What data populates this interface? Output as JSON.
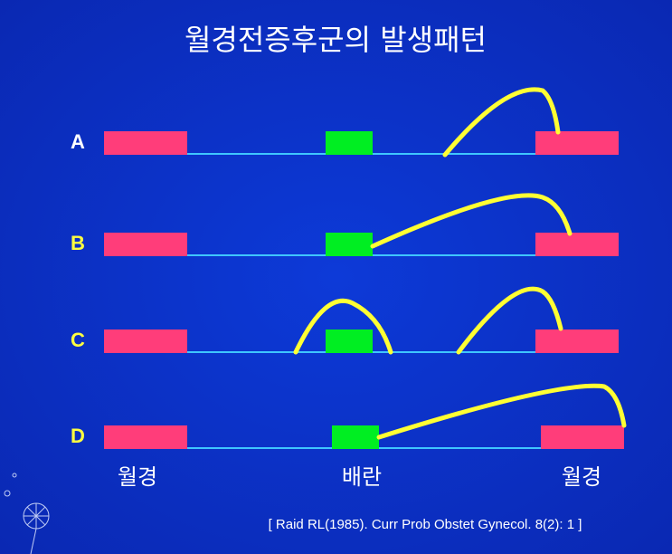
{
  "title": "월경전증후군의 발생패턴",
  "rows": [
    {
      "label": "A"
    },
    {
      "label": "B"
    },
    {
      "label": "C"
    },
    {
      "label": "D"
    }
  ],
  "axis_labels": [
    "월경",
    "배란",
    "월경"
  ],
  "citation": "[ Raid RL(1985). Curr Prob Obstet Gynecol. 8(2): 1 ]"
}
